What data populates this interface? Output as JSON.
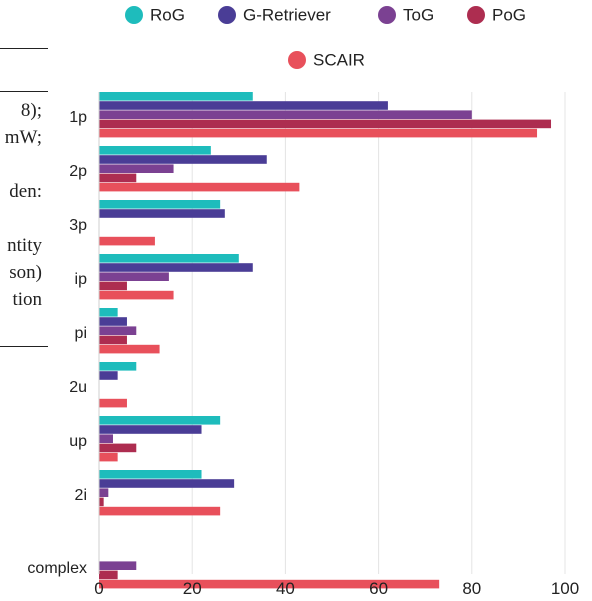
{
  "left_fragment": {
    "lines": [
      "8);",
      "mW;",
      "den:",
      "ntity",
      "son)",
      "tion"
    ]
  },
  "chart_data": {
    "type": "bar",
    "orientation": "horizontal",
    "title": "",
    "xlabel": "",
    "ylabel": "",
    "xlim": [
      0,
      100
    ],
    "x_ticks": [
      0,
      20,
      40,
      60,
      80,
      100
    ],
    "grid": true,
    "legend_position": "top",
    "categories": [
      "1p",
      "2p",
      "3p",
      "ip",
      "pi",
      "2u",
      "up",
      "2i",
      "complex"
    ],
    "series": [
      {
        "name": "RoG",
        "color": "#1ebcbc",
        "values": [
          33,
          24,
          26,
          30,
          4,
          8,
          26,
          22,
          0
        ]
      },
      {
        "name": "G-Retriever",
        "color": "#4a3d96",
        "values": [
          62,
          36,
          27,
          33,
          6,
          4,
          22,
          29,
          0
        ]
      },
      {
        "name": "ToG",
        "color": "#7b4192",
        "values": [
          80,
          16,
          0,
          15,
          8,
          0,
          3,
          2,
          8
        ]
      },
      {
        "name": "PoG",
        "color": "#ad2d50",
        "values": [
          97,
          8,
          0,
          6,
          6,
          0,
          8,
          1,
          4
        ]
      },
      {
        "name": "SCAIR",
        "color": "#e8505b",
        "values": [
          94,
          43,
          12,
          16,
          13,
          6,
          4,
          26,
          73
        ]
      }
    ]
  }
}
